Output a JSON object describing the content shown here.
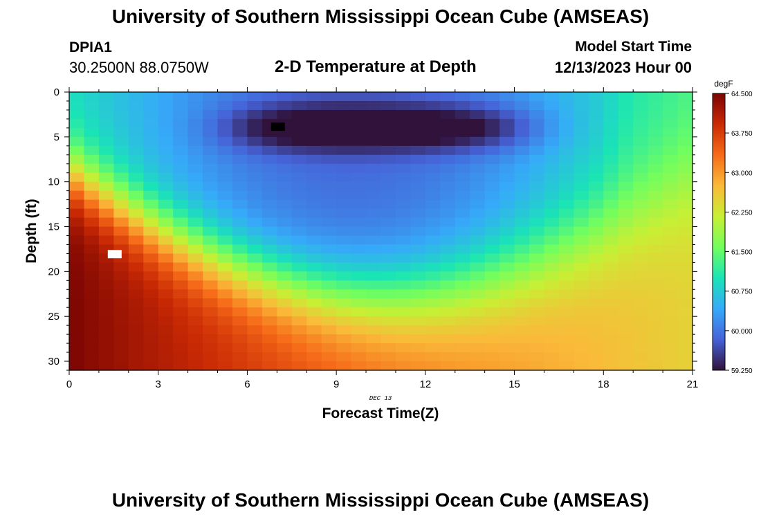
{
  "header": {
    "title": "University of Southern Mississippi Ocean Cube (AMSEAS)",
    "station": "DPIA1",
    "coords": "30.2500N  88.0750W",
    "subtitle": "2-D Temperature at Depth",
    "start_label": "Model Start Time",
    "start_value": "12/13/2023 Hour 00"
  },
  "footer": {
    "title": "University of Southern Mississippi Ocean Cube (AMSEAS)"
  },
  "chart_data": {
    "type": "heatmap",
    "title": "2-D Temperature at Depth",
    "xlabel": "Forecast Time(Z)",
    "ylabel": "Depth (ft)",
    "date_label": "DEC 13",
    "x_ticks": [
      "0",
      "3",
      "6",
      "9",
      "12",
      "15",
      "18",
      "21"
    ],
    "y_ticks": [
      "0",
      "5",
      "10",
      "15",
      "20",
      "25",
      "30"
    ],
    "xlim": [
      0,
      21
    ],
    "ylim": [
      0,
      31
    ],
    "colorbar": {
      "unit": "degF",
      "ticks": [
        "64.500",
        "63.750",
        "63.000",
        "62.250",
        "61.500",
        "60.750",
        "60.000",
        "59.250"
      ],
      "range": [
        59.25,
        64.5
      ],
      "colors": [
        "#30123b",
        "#4662d7",
        "#36aaf9",
        "#1ae4b6",
        "#72fe5e",
        "#c8ef34",
        "#faba39",
        "#f66b19",
        "#ca2a04",
        "#7a0403"
      ]
    },
    "field_description": "Temperature (degF) vs forecast hour and depth: cold layer (~59.3-59.6) near 3-6 ft from hour 6 to 16, warm core (~64.5) below 10 ft during hours 0-4 cooling through the period."
  }
}
